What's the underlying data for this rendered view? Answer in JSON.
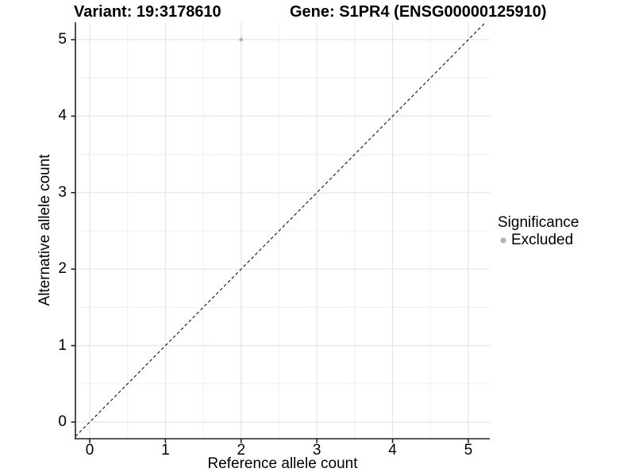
{
  "figure": {
    "title_variant": "Variant: 19:3178610",
    "title_gene": "Gene: S1PR4 (ENSG00000125910)"
  },
  "axes": {
    "x": {
      "label": "Reference allele count",
      "ticks": [
        "0",
        "1",
        "2",
        "3",
        "4",
        "5"
      ]
    },
    "y": {
      "label": "Alternative allele count",
      "ticks": [
        "0",
        "1",
        "2",
        "3",
        "4",
        "5"
      ]
    }
  },
  "legend": {
    "title": "Significance",
    "items": [
      {
        "label": "Excluded",
        "marker": "dot-icon",
        "color": "#b3b3b3"
      }
    ]
  },
  "chart_data": {
    "type": "scatter",
    "title": "Variant: 19:3178610 / Gene: S1PR4 (ENSG00000125910)",
    "xlabel": "Reference allele count",
    "ylabel": "Alternative allele count",
    "xlim": [
      -0.25,
      5.25
    ],
    "ylim": [
      -0.25,
      5.25
    ],
    "x_ticks": [
      0,
      1,
      2,
      3,
      4,
      5
    ],
    "y_ticks": [
      0,
      1,
      2,
      3,
      4,
      5
    ],
    "grid": "on",
    "minor_grid": "on",
    "legend_position": "right",
    "series": [
      {
        "name": "Excluded",
        "color": "#b3b3b3",
        "points": [
          {
            "x": 2,
            "y": 5
          }
        ]
      }
    ],
    "reference_line": {
      "type": "identity y=x",
      "style": "dashed",
      "color": "#000000"
    }
  },
  "colors": {
    "background": "#ffffff",
    "grid_major": "#e5e5e5",
    "grid_minor": "#efefef",
    "axis": "#222222",
    "text": "#000000",
    "excluded": "#b3b3b3"
  }
}
